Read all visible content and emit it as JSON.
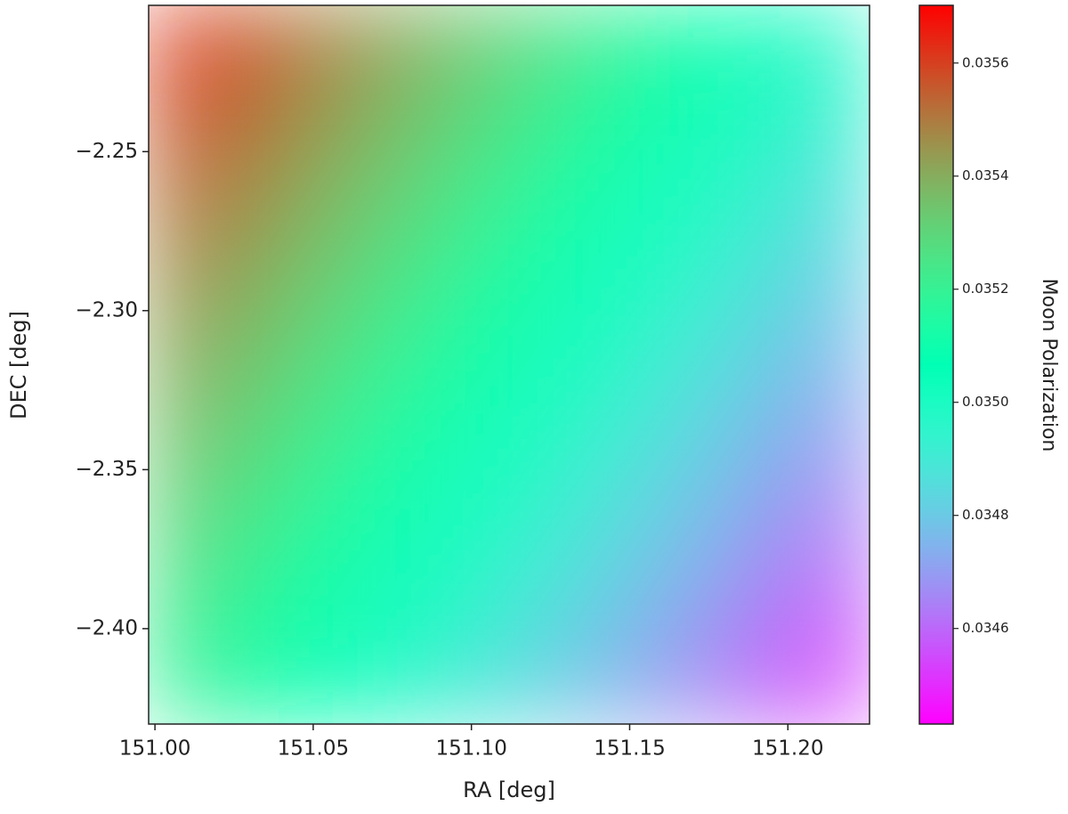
{
  "chart_data": {
    "type": "heatmap",
    "xlabel": "RA [deg]",
    "ylabel": "DEC [deg]",
    "colorbar_label": "Moon Polarization",
    "colormap": "rainbow",
    "xlim": [
      150.998,
      151.2258
    ],
    "ylim": [
      -2.204,
      -2.43
    ],
    "xticks": [
      {
        "value": 151.0,
        "label": "151.00"
      },
      {
        "value": 151.05,
        "label": "151.05"
      },
      {
        "value": 151.1,
        "label": "151.10"
      },
      {
        "value": 151.15,
        "label": "151.15"
      },
      {
        "value": 151.2,
        "label": "151.20"
      }
    ],
    "yticks": [
      {
        "value": -2.25,
        "label": "−2.25"
      },
      {
        "value": -2.3,
        "label": "−2.30"
      },
      {
        "value": -2.35,
        "label": "−2.35"
      },
      {
        "value": -2.4,
        "label": "−2.40"
      }
    ],
    "clim": [
      0.034431,
      0.035702
    ],
    "cticks": [
      0.0346,
      0.0348,
      {
        "value": 0.035,
        "label": "0.0350"
      },
      0.0352,
      0.0354,
      0.0356
    ],
    "values": [
      [
        0.035622,
        0.035528,
        0.035435,
        0.035341,
        0.035247,
        0.035153,
        0.03506,
        0.034966
      ],
      [
        0.035559,
        0.035465,
        0.035372,
        0.035278,
        0.035184,
        0.03509,
        0.034997,
        0.034903
      ],
      [
        0.035497,
        0.035403,
        0.03531,
        0.035216,
        0.035122,
        0.035028,
        0.034935,
        0.034841
      ],
      [
        0.035434,
        0.03534,
        0.035247,
        0.035153,
        0.035059,
        0.034965,
        0.034872,
        0.034778
      ],
      [
        0.035372,
        0.035278,
        0.035185,
        0.035091,
        0.034997,
        0.034903,
        0.03481,
        0.034716
      ],
      [
        0.035309,
        0.035215,
        0.035122,
        0.035028,
        0.034934,
        0.03484,
        0.034747,
        0.034653
      ],
      [
        0.035247,
        0.035153,
        0.03506,
        0.034966,
        0.034872,
        0.034778,
        0.034685,
        0.034591
      ],
      [
        0.035184,
        0.03509,
        0.034997,
        0.034903,
        0.034809,
        0.034715,
        0.034622,
        0.034528
      ]
    ]
  }
}
